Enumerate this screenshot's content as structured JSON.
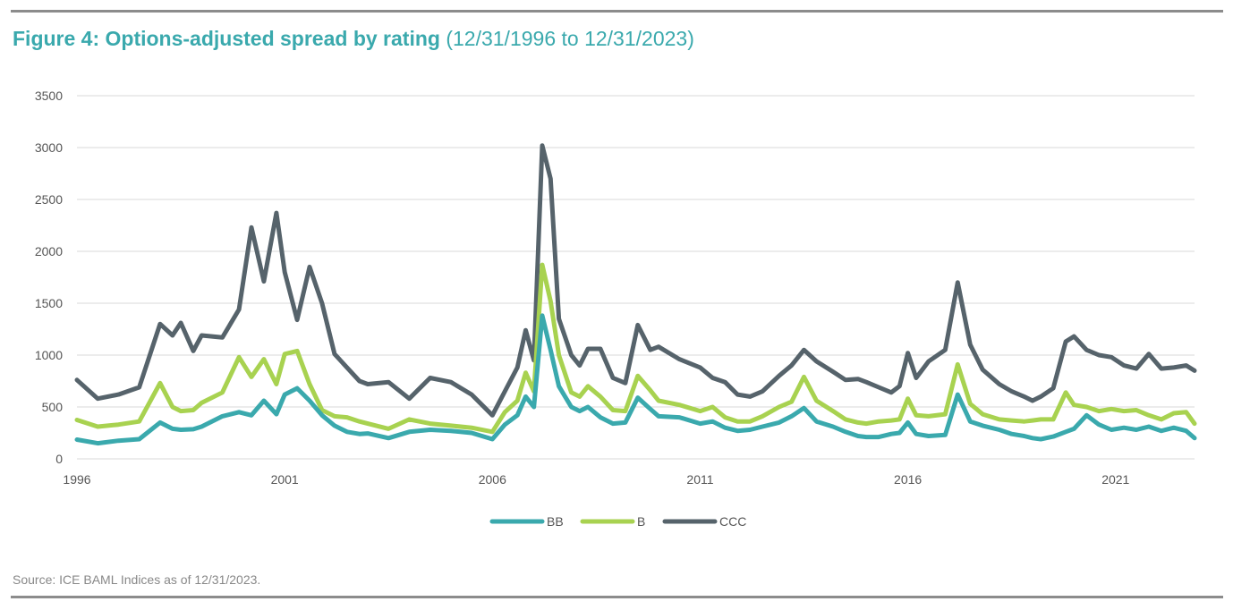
{
  "title": {
    "main": "Figure 4: Options-adjusted spread by rating",
    "sub": "(12/31/1996 to 12/31/2023)"
  },
  "source": "Source: ICE BAML Indices as of 12/31/2023.",
  "colors": {
    "BB": "#3aa9ad",
    "B": "#a8d250",
    "CCC": "#56636b",
    "grid": "#d9d9d9",
    "rule": "#8c8c8c"
  },
  "chart_data": {
    "type": "line",
    "title": "Figure 4: Options-adjusted spread by rating",
    "xlabel": "",
    "ylabel": "",
    "xlim": [
      1996,
      2022.9
    ],
    "ylim": [
      0,
      3500
    ],
    "y_ticks": [
      "0",
      "500",
      "1000",
      "1500",
      "2000",
      "2500",
      "3000",
      "3500"
    ],
    "x_ticks": [
      "1996",
      "2001",
      "2006",
      "2011",
      "2016",
      "2021"
    ],
    "grid": true,
    "legend": "bottom-center",
    "x": [
      1996.0,
      1996.5,
      1997.0,
      1997.5,
      1998.0,
      1998.3,
      1998.5,
      1998.8,
      1999.0,
      1999.5,
      1999.9,
      2000.2,
      2000.5,
      2000.8,
      2001.0,
      2001.3,
      2001.6,
      2001.9,
      2002.2,
      2002.5,
      2002.8,
      2003.0,
      2003.5,
      2004.0,
      2004.5,
      2005.0,
      2005.5,
      2006.0,
      2006.3,
      2006.6,
      2006.8,
      2007.0,
      2007.2,
      2007.4,
      2007.6,
      2007.9,
      2008.1,
      2008.3,
      2008.6,
      2008.9,
      2009.2,
      2009.5,
      2009.8,
      2010.0,
      2010.5,
      2011.0,
      2011.3,
      2011.6,
      2011.9,
      2012.2,
      2012.5,
      2012.9,
      2013.2,
      2013.5,
      2013.8,
      2014.2,
      2014.5,
      2014.8,
      2015.0,
      2015.3,
      2015.6,
      2015.8,
      2016.0,
      2016.2,
      2016.5,
      2016.9,
      2017.2,
      2017.5,
      2017.8,
      2018.2,
      2018.5,
      2018.8,
      2019.0,
      2019.2,
      2019.5,
      2019.8,
      2020.0,
      2020.3,
      2020.6,
      2020.9,
      2021.2,
      2021.5,
      2021.8,
      2022.1,
      2022.4,
      2022.7,
      2022.9
    ],
    "series": [
      {
        "name": "BB",
        "values": [
          185,
          150,
          175,
          190,
          350,
          290,
          280,
          285,
          310,
          410,
          450,
          420,
          560,
          430,
          620,
          680,
          560,
          420,
          320,
          260,
          240,
          245,
          200,
          260,
          280,
          270,
          250,
          190,
          330,
          420,
          600,
          500,
          1380,
          1050,
          700,
          500,
          460,
          500,
          400,
          340,
          350,
          590,
          480,
          410,
          400,
          340,
          360,
          300,
          270,
          280,
          310,
          350,
          410,
          490,
          360,
          310,
          260,
          220,
          210,
          210,
          240,
          250,
          350,
          240,
          220,
          230,
          620,
          360,
          320,
          280,
          240,
          220,
          200,
          190,
          215,
          260,
          290,
          420,
          330,
          280,
          300,
          280,
          310,
          270,
          300,
          270,
          200
        ]
      },
      {
        "name": "B",
        "values": [
          375,
          310,
          330,
          360,
          730,
          500,
          460,
          470,
          540,
          640,
          980,
          790,
          960,
          720,
          1010,
          1040,
          720,
          470,
          410,
          400,
          360,
          340,
          290,
          380,
          340,
          320,
          300,
          260,
          450,
          560,
          830,
          650,
          1870,
          1520,
          1000,
          640,
          600,
          700,
          600,
          470,
          460,
          800,
          660,
          560,
          520,
          460,
          500,
          400,
          360,
          360,
          410,
          500,
          550,
          790,
          560,
          460,
          380,
          350,
          340,
          360,
          370,
          380,
          580,
          420,
          410,
          430,
          910,
          530,
          430,
          380,
          370,
          360,
          370,
          380,
          380,
          640,
          520,
          500,
          460,
          480,
          460,
          470,
          420,
          380,
          440,
          450,
          340
        ]
      },
      {
        "name": "CCC",
        "values": [
          760,
          580,
          620,
          690,
          1300,
          1190,
          1310,
          1040,
          1190,
          1170,
          1440,
          2230,
          1710,
          2370,
          1800,
          1340,
          1850,
          1500,
          1010,
          880,
          750,
          720,
          740,
          580,
          780,
          740,
          620,
          420,
          650,
          880,
          1240,
          950,
          3020,
          2700,
          1350,
          1000,
          900,
          1060,
          1060,
          780,
          730,
          1290,
          1050,
          1080,
          960,
          880,
          780,
          740,
          620,
          600,
          650,
          800,
          900,
          1050,
          940,
          840,
          760,
          770,
          740,
          690,
          640,
          700,
          1020,
          780,
          940,
          1050,
          1700,
          1100,
          860,
          720,
          650,
          600,
          560,
          600,
          680,
          1130,
          1180,
          1050,
          1000,
          980,
          900,
          870,
          1010,
          870,
          880,
          900,
          850
        ]
      }
    ]
  }
}
